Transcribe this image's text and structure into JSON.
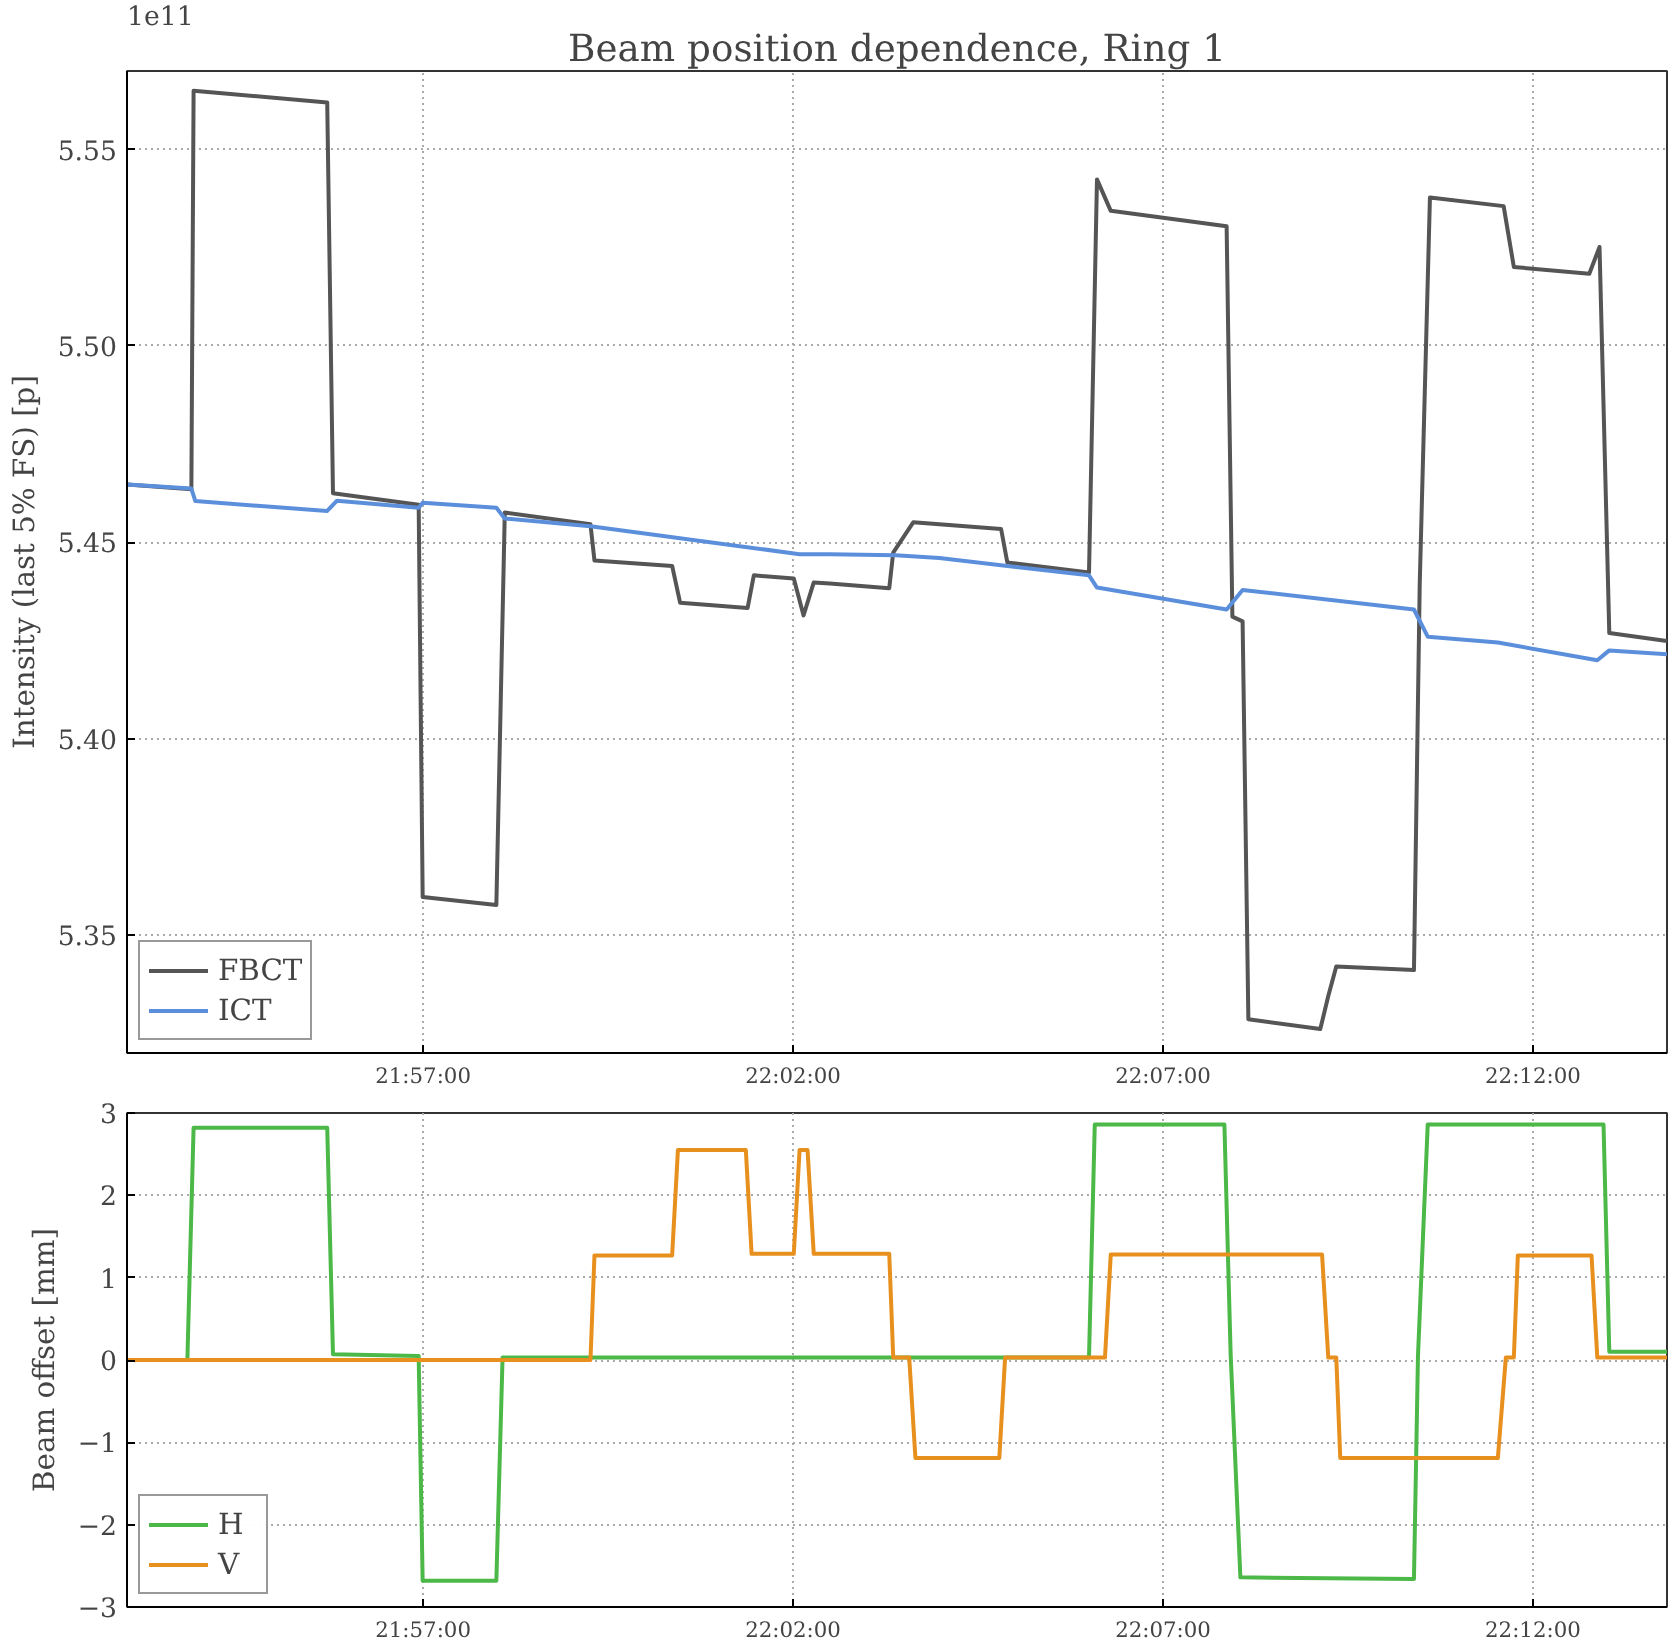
{
  "chart_data": [
    {
      "type": "line",
      "title": "Beam position dependence, Ring 1",
      "ylabel": "Intensity (last 5% FS) [p]",
      "annotations": [
        "1e11"
      ],
      "xlim": [
        21.8833,
        22.2302
      ],
      "ylim": [
        5.32,
        5.57
      ],
      "xticks": [
        {
          "value": 21.95,
          "label": "21:57:00"
        },
        {
          "value": 22.03333,
          "label": "22:02:00"
        },
        {
          "value": 22.11667,
          "label": "22:07:00"
        },
        {
          "value": 22.2,
          "label": "22:12:00"
        }
      ],
      "yticks": [
        {
          "value": 5.35,
          "label": "5.35"
        },
        {
          "value": 5.4,
          "label": "5.40"
        },
        {
          "value": 5.45,
          "label": "5.45"
        },
        {
          "value": 5.5,
          "label": "5.50"
        },
        {
          "value": 5.55,
          "label": "5.55"
        }
      ],
      "grid": true,
      "legend": "bottom left",
      "line_style": "solid",
      "series": [
        {
          "name": "FBCT",
          "color": "#555555",
          "x": [
            21.8833,
            21.8978,
            21.8983,
            21.9284,
            21.9297,
            21.949,
            21.9499,
            21.9665,
            21.9684,
            21.9877,
            21.9886,
            22.0061,
            22.0079,
            22.0231,
            22.0245,
            22.0335,
            22.0357,
            22.038,
            22.0416,
            22.055,
            22.0559,
            22.0604,
            22.0802,
            22.0816,
            22.1,
            22.1018,
            22.1049,
            22.131,
            22.1323,
            22.1346,
            22.1359,
            22.1521,
            22.1539,
            22.1557,
            22.1732,
            22.1745,
            22.1768,
            22.1934,
            22.1957,
            22.2127,
            22.215,
            22.2172,
            22.2302
          ],
          "values": [
            5.4647,
            5.4635,
            5.565,
            5.562,
            5.4625,
            5.4596,
            5.3597,
            5.3577,
            5.4576,
            5.4546,
            5.4454,
            5.444,
            5.4346,
            5.4333,
            5.4416,
            5.4408,
            5.4314,
            5.4398,
            5.4395,
            5.4383,
            5.4474,
            5.4551,
            5.4534,
            5.4449,
            5.4423,
            5.5424,
            5.5344,
            5.5305,
            5.4311,
            5.4299,
            5.3286,
            5.3261,
            5.3345,
            5.342,
            5.3411,
            5.4395,
            5.5378,
            5.5356,
            5.5201,
            5.5184,
            5.5252,
            5.4269,
            5.4249
          ]
        },
        {
          "name": "ICT",
          "color": "#5b8fdc",
          "x": [
            21.8833,
            21.8978,
            21.8987,
            21.9284,
            21.9306,
            21.949,
            21.9499,
            21.9665,
            21.9684,
            21.9877,
            22.0348,
            22.0416,
            22.0564,
            22.0663,
            22.1,
            22.1018,
            22.131,
            22.1346,
            22.1732,
            22.1763,
            22.1921,
            22.2145,
            22.2172,
            22.2302
          ],
          "values": [
            5.4647,
            5.4637,
            5.4605,
            5.458,
            5.4606,
            5.4588,
            5.4601,
            5.4588,
            5.4561,
            5.4541,
            5.447,
            5.447,
            5.4467,
            5.446,
            5.4416,
            5.4385,
            5.4329,
            5.4379,
            5.4329,
            5.426,
            5.4245,
            5.42,
            5.4225,
            5.4215
          ]
        }
      ]
    },
    {
      "type": "line",
      "ylabel": "Beam offset [mm]",
      "xlim": [
        21.8833,
        22.2302
      ],
      "ylim": [
        -3,
        3
      ],
      "xticks": [
        {
          "value": 21.95,
          "label": "21:57:00"
        },
        {
          "value": 22.03333,
          "label": "22:02:00"
        },
        {
          "value": 22.11667,
          "label": "22:07:00"
        },
        {
          "value": 22.2,
          "label": "22:12:00"
        }
      ],
      "yticks": [
        {
          "value": -3,
          "label": "−3"
        },
        {
          "value": -2,
          "label": "−2"
        },
        {
          "value": -1,
          "label": "−1"
        },
        0,
        1,
        2,
        3
      ],
      "grid": true,
      "legend": "bottom left",
      "line_style": "solid",
      "series": [
        {
          "name": "H",
          "color": "#4cb848",
          "x": [
            21.8833,
            21.8969,
            21.8983,
            21.9284,
            21.9297,
            21.949,
            21.9499,
            21.9665,
            21.9679,
            22.1,
            22.1013,
            22.1305,
            22.1319,
            22.1341,
            22.1732,
            22.1741,
            22.1763,
            22.2159,
            22.2172,
            22.2302
          ],
          "values": [
            0,
            0,
            2.82,
            2.82,
            0.07,
            0.05,
            -2.68,
            -2.68,
            0.03,
            0.03,
            2.86,
            2.86,
            0.08,
            -2.64,
            -2.66,
            0.04,
            2.86,
            2.86,
            0.1,
            0.1
          ]
        },
        {
          "name": "V",
          "color": "#e8901e",
          "x": [
            21.8833,
            21.9877,
            21.9886,
            22.0061,
            22.0074,
            22.0227,
            22.024,
            22.0335,
            22.0348,
            22.0366,
            22.038,
            22.055,
            22.0559,
            22.0595,
            22.0609,
            22.0798,
            22.0811,
            22.1036,
            22.1049,
            22.1525,
            22.1539,
            22.1557,
            22.1566,
            22.1921,
            22.1939,
            22.1957,
            22.1966,
            22.2132,
            22.2145,
            22.2302
          ],
          "values": [
            0,
            0,
            1.27,
            1.27,
            2.55,
            2.55,
            1.29,
            1.29,
            2.55,
            2.55,
            1.29,
            1.29,
            0.03,
            0.03,
            -1.19,
            -1.19,
            0.03,
            0.03,
            1.28,
            1.28,
            0.03,
            0.03,
            -1.19,
            -1.19,
            0.03,
            0.03,
            1.27,
            1.27,
            0.03,
            0.03
          ]
        }
      ]
    }
  ]
}
